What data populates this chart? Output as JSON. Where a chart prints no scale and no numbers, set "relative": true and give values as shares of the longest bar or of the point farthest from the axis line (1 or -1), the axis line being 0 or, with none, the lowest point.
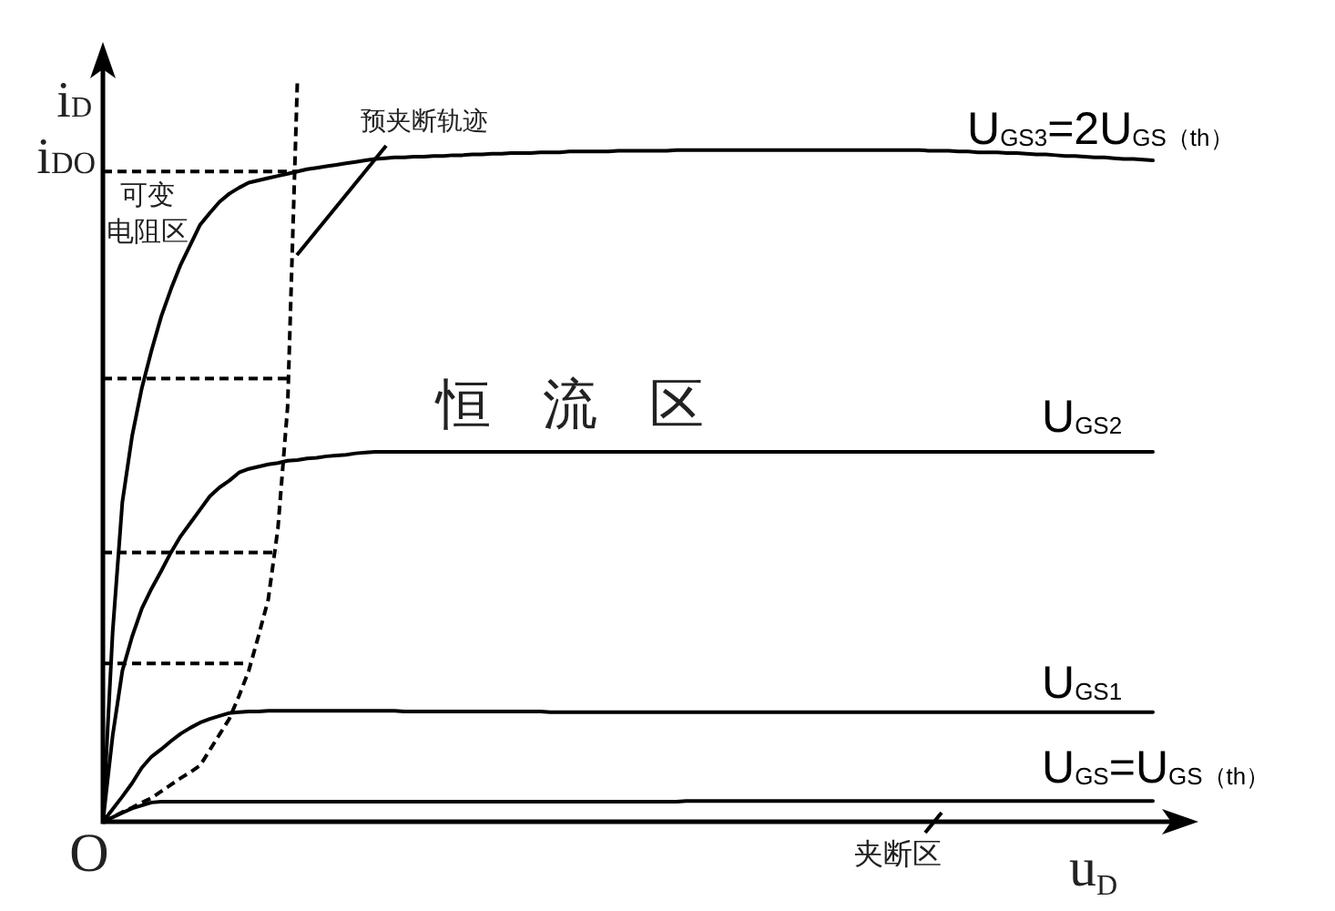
{
  "chart_data": {
    "type": "line",
    "relative": true,
    "xlabel": "u$_{D}$",
    "ylabel": "i$_{D}$",
    "categories": [
      null,
      null,
      null,
      null,
      null,
      null,
      null,
      null,
      null,
      null,
      null,
      null,
      null,
      null,
      null,
      null,
      null,
      null,
      null,
      null,
      null,
      null,
      null,
      null,
      null,
      null,
      null,
      null,
      null,
      null,
      null,
      null,
      null,
      null,
      null,
      null,
      null,
      null,
      null,
      null,
      null,
      null,
      null,
      null,
      null,
      null,
      null,
      null,
      null,
      null,
      null,
      null,
      null,
      null,
      null,
      null,
      null,
      null,
      null,
      null,
      null,
      null,
      null,
      null,
      null,
      null,
      null,
      null,
      null,
      null,
      null,
      null,
      null,
      null,
      null,
      null,
      null,
      null,
      null,
      null,
      null,
      null,
      null,
      null,
      null,
      null,
      null,
      null,
      null,
      null,
      null,
      null,
      null,
      null,
      null,
      null,
      null,
      null,
      null,
      null,
      null,
      null,
      null,
      null,
      null,
      null,
      null,
      null,
      null
    ],
    "series": [
      {
        "name": "U$_{GS3}$=2U$_{GS（th）}$",
        "color": "#000000",
        "values": [
          0,
          0.256,
          0.432,
          0.521,
          0.586,
          0.637,
          0.683,
          0.72,
          0.753,
          0.78,
          0.807,
          0.823,
          0.838,
          0.849,
          0.857,
          0.864,
          0.867,
          0.87,
          0.873,
          0.876,
          0.879,
          0.882,
          0.884,
          0.886,
          0.888,
          0.89,
          0.892,
          0.894,
          0.896,
          0.897,
          0.898,
          0.898,
          0.899,
          0.899,
          0.9,
          0.9,
          0.901,
          0.901,
          0.902,
          0.902,
          0.903,
          0.903,
          0.904,
          0.904,
          0.904,
          0.905,
          0.905,
          0.905,
          0.906,
          0.906,
          0.906,
          0.906,
          0.906,
          0.907,
          0.907,
          0.907,
          0.907,
          0.907,
          0.907,
          0.908,
          0.908,
          0.908,
          0.908,
          0.908,
          0.908,
          0.908,
          0.908,
          0.908,
          0.908,
          0.908,
          0.908,
          0.908,
          0.908,
          0.908,
          0.908,
          0.908,
          0.908,
          0.908,
          0.908,
          0.908,
          0.908,
          0.908,
          0.908,
          0.908,
          0.908,
          0.907,
          0.907,
          0.907,
          0.906,
          0.906,
          0.905,
          0.905,
          0.905,
          0.904,
          0.904,
          0.903,
          0.902,
          0.902,
          0.901,
          0.9,
          0.9,
          0.899,
          0.898,
          0.898,
          0.897,
          0.896,
          0.896,
          0.895,
          0.894
        ]
      },
      {
        "name": "U$_{GS2}$",
        "color": "#000000",
        "values": [
          0,
          0.116,
          0.204,
          0.25,
          0.288,
          0.315,
          0.339,
          0.364,
          0.386,
          0.404,
          0.422,
          0.44,
          0.452,
          0.461,
          0.472,
          0.477,
          0.48,
          0.483,
          0.485,
          0.488,
          0.489,
          0.491,
          0.492,
          0.494,
          0.495,
          0.496,
          0.498,
          0.499,
          0.5,
          0.5,
          0.5,
          0.5,
          0.5,
          0.5,
          0.5,
          0.5,
          0.5,
          0.5,
          0.5,
          0.5,
          0.5,
          0.5,
          0.5,
          0.5,
          0.5,
          0.5,
          0.5,
          0.5,
          0.5,
          0.5,
          0.5,
          0.5,
          0.5,
          0.5,
          0.5,
          0.5,
          0.5,
          0.5,
          0.5,
          0.5,
          0.5,
          0.5,
          0.5,
          0.5,
          0.5,
          0.5,
          0.5,
          0.5,
          0.5,
          0.5,
          0.5,
          0.5,
          0.5,
          0.5,
          0.5,
          0.5,
          0.5,
          0.5,
          0.5,
          0.5,
          0.5,
          0.5,
          0.5,
          0.5,
          0.5,
          0.5,
          0.5,
          0.5,
          0.5,
          0.5,
          0.5,
          0.5,
          0.5,
          0.5,
          0.5,
          0.5,
          0.5,
          0.5,
          0.5,
          0.5,
          0.5,
          0.5,
          0.5,
          0.5,
          0.5,
          0.5,
          0.5,
          0.5,
          0.5
        ]
      },
      {
        "name": "U$_{GS1}$",
        "color": "#000000",
        "values": [
          0,
          0.017,
          0.034,
          0.052,
          0.073,
          0.088,
          0.098,
          0.109,
          0.119,
          0.127,
          0.134,
          0.139,
          0.143,
          0.147,
          0.148,
          0.149,
          0.149,
          0.15,
          0.15,
          0.15,
          0.15,
          0.15,
          0.15,
          0.15,
          0.15,
          0.15,
          0.15,
          0.15,
          0.15,
          0.15,
          0.15,
          0.149,
          0.149,
          0.149,
          0.149,
          0.149,
          0.149,
          0.149,
          0.149,
          0.149,
          0.149,
          0.149,
          0.149,
          0.149,
          0.149,
          0.149,
          0.148,
          0.148,
          0.148,
          0.148,
          0.148,
          0.148,
          0.148,
          0.148,
          0.148,
          0.148,
          0.148,
          0.148,
          0.148,
          0.148,
          0.148,
          0.148,
          0.148,
          0.148,
          0.148,
          0.148,
          0.148,
          0.148,
          0.148,
          0.148,
          0.148,
          0.148,
          0.148,
          0.148,
          0.148,
          0.148,
          0.148,
          0.148,
          0.148,
          0.148,
          0.148,
          0.148,
          0.148,
          0.148,
          0.148,
          0.148,
          0.148,
          0.148,
          0.148,
          0.148,
          0.148,
          0.148,
          0.148,
          0.148,
          0.148,
          0.148,
          0.148,
          0.148,
          0.148,
          0.148,
          0.148,
          0.148,
          0.148,
          0.148,
          0.148,
          0.148,
          0.148,
          0.148,
          0.148
        ]
      },
      {
        "name": "U$_{GS}$=U$_{GS（th）}$",
        "color": "#000000",
        "values": [
          0,
          0.006,
          0.012,
          0.018,
          0.022,
          0.026,
          0.027,
          0.027,
          0.027,
          0.027,
          0.027,
          0.027,
          0.027,
          0.027,
          0.027,
          0.027,
          0.027,
          0.027,
          0.027,
          0.027,
          0.027,
          0.027,
          0.027,
          0.027,
          0.027,
          0.027,
          0.027,
          0.027,
          0.027,
          0.027,
          0.027,
          0.027,
          0.027,
          0.027,
          0.027,
          0.027,
          0.027,
          0.027,
          0.027,
          0.027,
          0.027,
          0.027,
          0.027,
          0.027,
          0.027,
          0.027,
          0.027,
          0.027,
          0.027,
          0.027,
          0.027,
          0.027,
          0.027,
          0.027,
          0.027,
          0.027,
          0.027,
          0.027,
          0.027,
          0.027,
          0.028,
          0.028,
          0.028,
          0.028,
          0.028,
          0.028,
          0.028,
          0.028,
          0.028,
          0.028,
          0.028,
          0.028,
          0.028,
          0.028,
          0.028,
          0.028,
          0.028,
          0.028,
          0.028,
          0.028,
          0.028,
          0.028,
          0.028,
          0.028,
          0.028,
          0.028,
          0.028,
          0.028,
          0.028,
          0.028,
          0.028,
          0.028,
          0.028,
          0.028,
          0.028,
          0.028,
          0.028,
          0.028,
          0.028,
          0.028,
          0.028,
          0.028,
          0.028,
          0.028,
          0.028,
          0.028,
          0.028,
          0.028,
          0.028
        ]
      },
      {
        "color": "#000000",
        "line_style": "dashed",
        "values": [
          0,
          0.006,
          0.013,
          0.019,
          0.026,
          0.032,
          0.041,
          0.05,
          0.059,
          0.067,
          0.076,
          0.097,
          0.118,
          0.139,
          0.17,
          0.204,
          0.251,
          0.3,
          0.396,
          0.561,
          1,
          null,
          null,
          null,
          null,
          null,
          null,
          null,
          null,
          null,
          null,
          null,
          null,
          null,
          null,
          null,
          null,
          null,
          null,
          null,
          null,
          null,
          null,
          null,
          null,
          null,
          null,
          null,
          null,
          null,
          null,
          null,
          null,
          null,
          null,
          null,
          null,
          null,
          null,
          null,
          null,
          null,
          null,
          null,
          null,
          null,
          null,
          null,
          null,
          null,
          null,
          null,
          null,
          null,
          null,
          null,
          null,
          null,
          null,
          null,
          null,
          null,
          null,
          null,
          null,
          null,
          null,
          null,
          null,
          null,
          null,
          null,
          null,
          null,
          null,
          null,
          null,
          null,
          null,
          null,
          null,
          null,
          null,
          null,
          null,
          null,
          null,
          null,
          null
        ]
      },
      {
        "color": "#000000",
        "line_style": "dashed",
        "values": [
          0.879,
          0.879,
          0.879,
          0.879,
          0.879,
          0.879,
          0.879,
          0.879,
          0.879,
          0.879,
          0.879,
          0.879,
          0.879,
          0.879,
          0.879,
          0.879,
          0.879,
          0.879,
          0.879,
          0.879,
          0.879,
          null,
          null,
          null,
          null,
          null,
          null,
          null,
          null,
          null,
          null,
          null,
          null,
          null,
          null,
          null,
          null,
          null,
          null,
          null,
          null,
          null,
          null,
          null,
          null,
          null,
          null,
          null,
          null,
          null,
          null,
          null,
          null,
          null,
          null,
          null,
          null,
          null,
          null,
          null,
          null,
          null,
          null,
          null,
          null,
          null,
          null,
          null,
          null,
          null,
          null,
          null,
          null,
          null,
          null,
          null,
          null,
          null,
          null,
          null,
          null,
          null,
          null,
          null,
          null,
          null,
          null,
          null,
          null,
          null,
          null,
          null,
          null,
          null,
          null,
          null,
          null,
          null,
          null,
          null,
          null,
          null,
          null,
          null,
          null,
          null,
          null,
          null,
          null
        ]
      },
      {
        "color": "#000000",
        "line_style": "dashed",
        "values": [
          0.599,
          0.599,
          0.599,
          0.599,
          0.599,
          0.599,
          0.599,
          0.599,
          0.599,
          0.599,
          0.599,
          0.599,
          0.599,
          0.599,
          0.599,
          0.599,
          0.599,
          0.599,
          0.599,
          0.599,
          null,
          null,
          null,
          null,
          null,
          null,
          null,
          null,
          null,
          null,
          null,
          null,
          null,
          null,
          null,
          null,
          null,
          null,
          null,
          null,
          null,
          null,
          null,
          null,
          null,
          null,
          null,
          null,
          null,
          null,
          null,
          null,
          null,
          null,
          null,
          null,
          null,
          null,
          null,
          null,
          null,
          null,
          null,
          null,
          null,
          null,
          null,
          null,
          null,
          null,
          null,
          null,
          null,
          null,
          null,
          null,
          null,
          null,
          null,
          null,
          null,
          null,
          null,
          null,
          null,
          null,
          null,
          null,
          null,
          null,
          null,
          null,
          null,
          null,
          null,
          null,
          null,
          null,
          null,
          null,
          null,
          null,
          null,
          null,
          null,
          null,
          null,
          null,
          null
        ]
      },
      {
        "color": "#000000",
        "line_style": "dashed",
        "values": [
          0.364,
          0.364,
          0.364,
          0.364,
          0.364,
          0.364,
          0.364,
          0.364,
          0.364,
          0.364,
          0.364,
          0.364,
          0.364,
          0.364,
          0.364,
          0.364,
          0.364,
          0.364,
          0.364,
          null,
          null,
          null,
          null,
          null,
          null,
          null,
          null,
          null,
          null,
          null,
          null,
          null,
          null,
          null,
          null,
          null,
          null,
          null,
          null,
          null,
          null,
          null,
          null,
          null,
          null,
          null,
          null,
          null,
          null,
          null,
          null,
          null,
          null,
          null,
          null,
          null,
          null,
          null,
          null,
          null,
          null,
          null,
          null,
          null,
          null,
          null,
          null,
          null,
          null,
          null,
          null,
          null,
          null,
          null,
          null,
          null,
          null,
          null,
          null,
          null,
          null,
          null,
          null,
          null,
          null,
          null,
          null,
          null,
          null,
          null,
          null,
          null,
          null,
          null,
          null,
          null,
          null,
          null,
          null,
          null,
          null,
          null,
          null,
          null,
          null,
          null,
          null,
          null,
          null
        ]
      },
      {
        "color": "#000000",
        "line_style": "dashed",
        "values": [
          0.214,
          0.214,
          0.214,
          0.214,
          0.214,
          0.214,
          0.214,
          0.214,
          0.214,
          0.214,
          0.214,
          0.214,
          0.214,
          0.214,
          0.214,
          0.214,
          null,
          null,
          null,
          null,
          null,
          null,
          null,
          null,
          null,
          null,
          null,
          null,
          null,
          null,
          null,
          null,
          null,
          null,
          null,
          null,
          null,
          null,
          null,
          null,
          null,
          null,
          null,
          null,
          null,
          null,
          null,
          null,
          null,
          null,
          null,
          null,
          null,
          null,
          null,
          null,
          null,
          null,
          null,
          null,
          null,
          null,
          null,
          null,
          null,
          null,
          null,
          null,
          null,
          null,
          null,
          null,
          null,
          null,
          null,
          null,
          null,
          null,
          null,
          null,
          null,
          null,
          null,
          null,
          null,
          null,
          null,
          null,
          null,
          null,
          null,
          null,
          null,
          null,
          null,
          null,
          null,
          null,
          null,
          null,
          null,
          null,
          null,
          null,
          null,
          null,
          null,
          null,
          null
        ]
      }
    ],
    "annotations": [
      "i$_{DO}$",
      "预夹断轨迹",
      "可变电阻区",
      "恒 流 区",
      "O",
      "夹断区"
    ]
  }
}
